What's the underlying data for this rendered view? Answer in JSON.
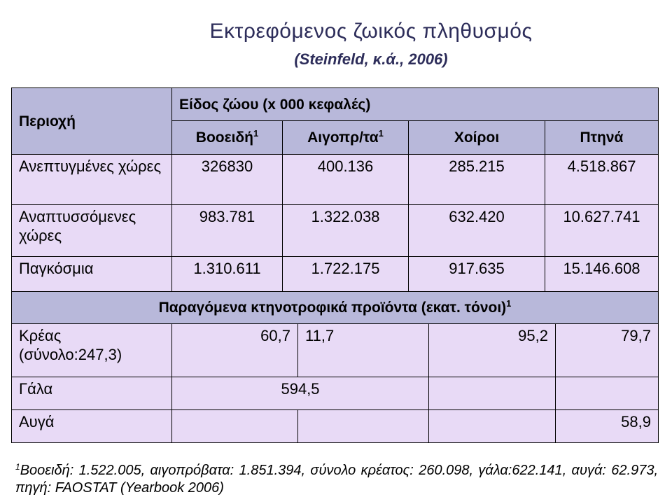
{
  "title": "Εκτρεφόμενος ζωικός πληθυσμός",
  "subtitle": "(Steinfeld, κ.ά., 2006)",
  "table": {
    "region_header": "Περιοχή",
    "animals_header": "Είδος ζώου (x 000 κεφαλές)",
    "columns": [
      {
        "text": "Βοοειδή",
        "sup": "1"
      },
      {
        "text": "Αιγοπρ/τα",
        "sup": "1"
      },
      {
        "text": "Χοίροι"
      },
      {
        "text": "Πτηνά"
      }
    ],
    "rows": [
      [
        "Ανεπτυγμένες χώρες",
        "326830",
        "400.136",
        "285.215",
        "4.518.867"
      ],
      [
        "Αναπτυσσόμενες χώρες",
        "983.781",
        "1.322.038",
        "632.420",
        "10.627.741"
      ],
      [
        "Παγκόσμια",
        "1.310.611",
        "1.722.175",
        "917.635",
        "15.146.608"
      ]
    ],
    "products_header": {
      "text": "Παραγόμενα κτηνοτροφικά προϊόντα (εκατ. τόνοι)",
      "sup": "1"
    },
    "product_rows": [
      {
        "label": "Κρέας (σύνολο:247,3)",
        "values": [
          "60,7",
          "11,7",
          "95,2",
          "79,7"
        ]
      },
      {
        "label": "Γάλα",
        "values": [
          "594,5"
        ]
      },
      {
        "label": "Αυγά",
        "values": [
          "58,9"
        ]
      }
    ]
  },
  "footnote": {
    "sup": "1",
    "text": "Βοοειδή: 1.522.005, αιγοπρόβατα: 1.851.394, σύνολο κρέατος: 260.098, γάλα:622.141, αυγά: 62.973, πηγή: FAOSTAT (Yearbook 2006)"
  }
}
